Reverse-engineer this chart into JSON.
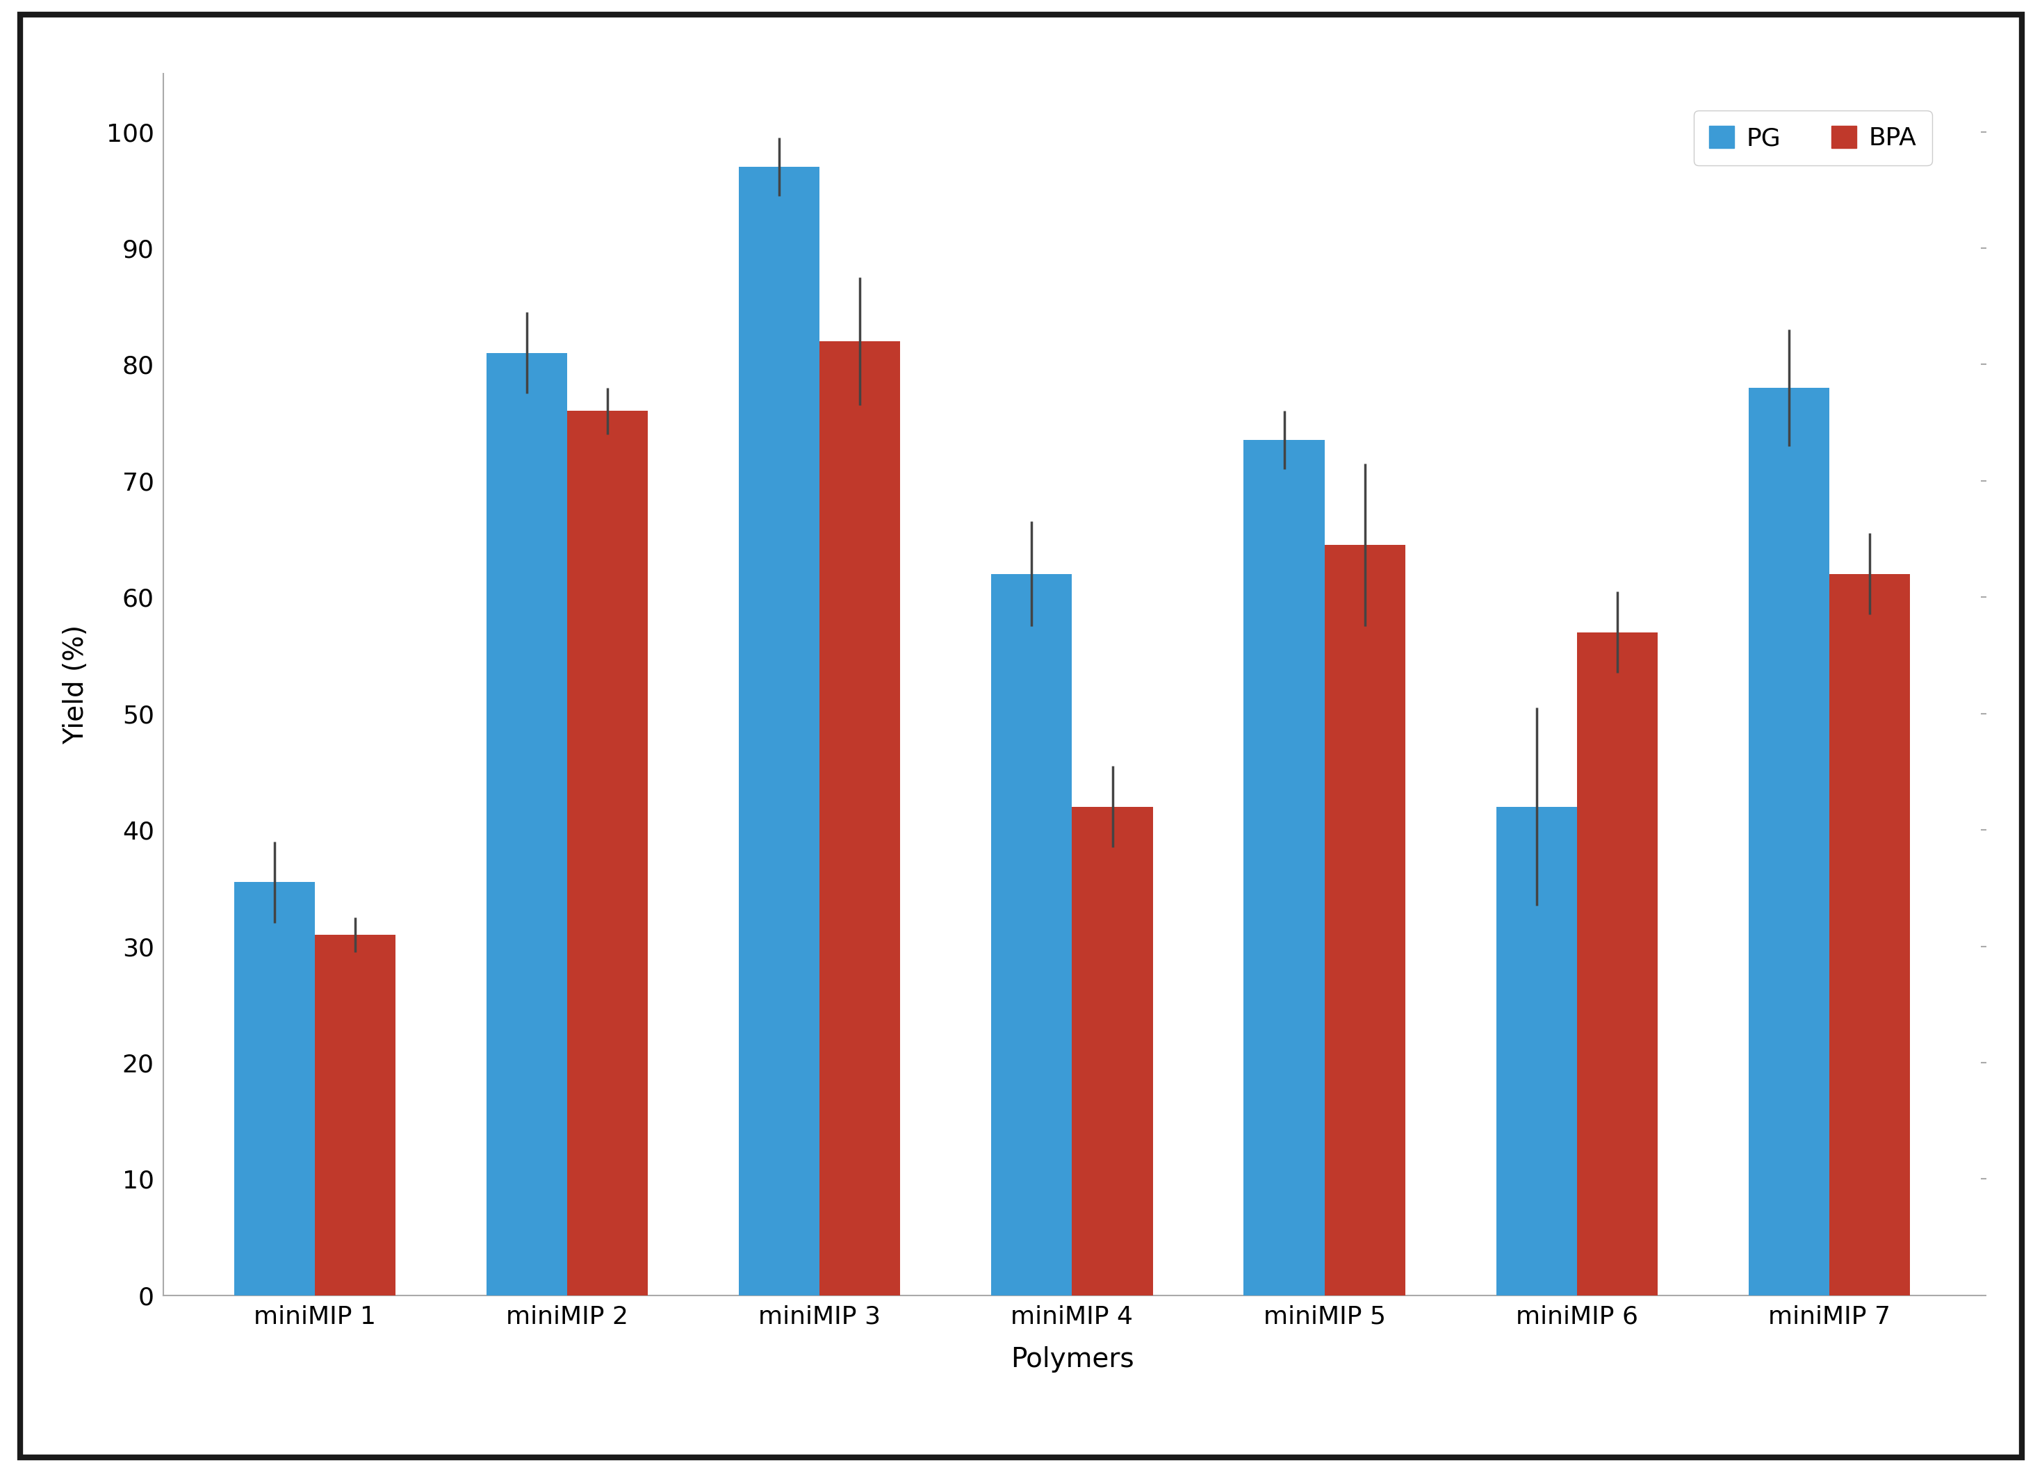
{
  "categories": [
    "miniMIP 1",
    "miniMIP 2",
    "miniMIP 3",
    "miniMIP 4",
    "miniMIP 5",
    "miniMIP 6",
    "miniMIP 7"
  ],
  "pg_values": [
    35.5,
    81.0,
    97.0,
    62.0,
    73.5,
    42.0,
    78.0
  ],
  "bpa_values": [
    31.0,
    76.0,
    82.0,
    42.0,
    64.5,
    57.0,
    62.0
  ],
  "pg_errors": [
    3.5,
    3.5,
    2.5,
    4.5,
    2.5,
    8.5,
    5.0
  ],
  "bpa_errors": [
    1.5,
    2.0,
    5.5,
    3.5,
    7.0,
    3.5,
    3.5
  ],
  "pg_color": "#3C9BD6",
  "bpa_color": "#C0392B",
  "bar_width": 0.32,
  "xlabel": "Polymers",
  "ylabel": "Yield (%)",
  "ylim": [
    0,
    105
  ],
  "yticks": [
    0,
    10,
    20,
    30,
    40,
    50,
    60,
    70,
    80,
    90,
    100
  ],
  "legend_labels": [
    "PG",
    "BPA"
  ],
  "background_color": "#ffffff",
  "border_color": "#1a1a1a",
  "error_color": "#444444",
  "xlabel_fontsize": 28,
  "ylabel_fontsize": 28,
  "tick_fontsize": 26,
  "legend_fontsize": 26,
  "spine_color": "#aaaaaa"
}
